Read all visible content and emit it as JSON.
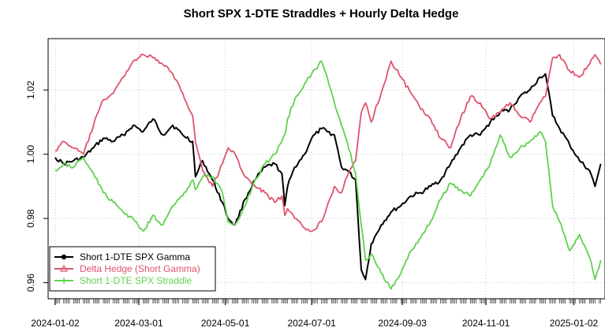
{
  "chart_data": {
    "type": "line",
    "title": "Short SPX 1-DTE Straddles + Hourly Delta Hedge",
    "xlabel": "",
    "ylabel": "",
    "x_range": [
      "2023-12-28",
      "2025-01-24"
    ],
    "ylim": [
      0.955,
      1.036
    ],
    "x_ticks": [
      "2024-01-02",
      "2024-03-01",
      "2024-05-01",
      "2024-07-01",
      "2024-09-03",
      "2024-11-01",
      "2025-01-02"
    ],
    "y_ticks": [
      0.96,
      0.98,
      1.0,
      1.02
    ],
    "y_tick_labels": [
      "0.96",
      "0.98",
      "1.00",
      "1.02"
    ],
    "grid": true,
    "legend_position": "bottom-left",
    "series": [
      {
        "name": "Short 1-DTE SPX Gamma",
        "color": "#000000",
        "marker": "circle",
        "points": [
          [
            "2024-01-02",
            0.999
          ],
          [
            "2024-01-08",
            0.997
          ],
          [
            "2024-01-15",
            0.998
          ],
          [
            "2024-01-22",
            0.999
          ],
          [
            "2024-01-29",
            1.002
          ],
          [
            "2024-02-05",
            1.005
          ],
          [
            "2024-02-12",
            1.004
          ],
          [
            "2024-02-19",
            1.006
          ],
          [
            "2024-02-26",
            1.009
          ],
          [
            "2024-03-04",
            1.007
          ],
          [
            "2024-03-11",
            1.011
          ],
          [
            "2024-03-18",
            1.006
          ],
          [
            "2024-03-25",
            1.009
          ],
          [
            "2024-04-01",
            1.006
          ],
          [
            "2024-04-08",
            1.004
          ],
          [
            "2024-04-10",
            0.993
          ],
          [
            "2024-04-15",
            0.998
          ],
          [
            "2024-04-22",
            0.992
          ],
          [
            "2024-04-29",
            0.985
          ],
          [
            "2024-05-03",
            0.98
          ],
          [
            "2024-05-08",
            0.978
          ],
          [
            "2024-05-15",
            0.986
          ],
          [
            "2024-05-22",
            0.992
          ],
          [
            "2024-05-29",
            0.996
          ],
          [
            "2024-06-05",
            0.997
          ],
          [
            "2024-06-10",
            0.994
          ],
          [
            "2024-06-12",
            0.984
          ],
          [
            "2024-06-14",
            0.99
          ],
          [
            "2024-06-19",
            0.996
          ],
          [
            "2024-06-26",
            1.0
          ],
          [
            "2024-07-01",
            1.005
          ],
          [
            "2024-07-08",
            1.008
          ],
          [
            "2024-07-12",
            1.007
          ],
          [
            "2024-07-17",
            1.006
          ],
          [
            "2024-07-22",
            0.996
          ],
          [
            "2024-07-26",
            0.995
          ],
          [
            "2024-08-01",
            0.992
          ],
          [
            "2024-08-05",
            0.964
          ],
          [
            "2024-08-08",
            0.961
          ],
          [
            "2024-08-12",
            0.972
          ],
          [
            "2024-08-19",
            0.978
          ],
          [
            "2024-08-26",
            0.982
          ],
          [
            "2024-09-02",
            0.984
          ],
          [
            "2024-09-09",
            0.987
          ],
          [
            "2024-09-16",
            0.988
          ],
          [
            "2024-09-23",
            0.99
          ],
          [
            "2024-09-30",
            0.992
          ],
          [
            "2024-10-07",
            0.997
          ],
          [
            "2024-10-14",
            1.002
          ],
          [
            "2024-10-21",
            1.006
          ],
          [
            "2024-10-28",
            1.006
          ],
          [
            "2024-11-04",
            1.01
          ],
          [
            "2024-11-11",
            1.013
          ],
          [
            "2024-11-18",
            1.014
          ],
          [
            "2024-11-25",
            1.018
          ],
          [
            "2024-12-02",
            1.02
          ],
          [
            "2024-12-09",
            1.024
          ],
          [
            "2024-12-13",
            1.025
          ],
          [
            "2024-12-18",
            1.012
          ],
          [
            "2024-12-23",
            1.008
          ],
          [
            "2024-12-30",
            1.003
          ],
          [
            "2025-01-06",
            0.998
          ],
          [
            "2025-01-13",
            0.995
          ],
          [
            "2025-01-17",
            0.99
          ],
          [
            "2025-01-21",
            0.997
          ]
        ]
      },
      {
        "name": "Delta Hedge (Short Gamma)",
        "color": "#df536b",
        "marker": "triangle",
        "points": [
          [
            "2024-01-02",
            1.001
          ],
          [
            "2024-01-08",
            1.004
          ],
          [
            "2024-01-15",
            1.002
          ],
          [
            "2024-01-22",
            1.0
          ],
          [
            "2024-01-29",
            1.009
          ],
          [
            "2024-02-05",
            1.017
          ],
          [
            "2024-02-12",
            1.019
          ],
          [
            "2024-02-19",
            1.024
          ],
          [
            "2024-02-26",
            1.029
          ],
          [
            "2024-03-04",
            1.031
          ],
          [
            "2024-03-11",
            1.03
          ],
          [
            "2024-03-18",
            1.028
          ],
          [
            "2024-03-25",
            1.025
          ],
          [
            "2024-04-01",
            1.019
          ],
          [
            "2024-04-08",
            1.012
          ],
          [
            "2024-04-10",
            1.004
          ],
          [
            "2024-04-15",
            0.995
          ],
          [
            "2024-04-22",
            0.99
          ],
          [
            "2024-04-29",
            0.997
          ],
          [
            "2024-05-03",
            1.002
          ],
          [
            "2024-05-08",
            1.0
          ],
          [
            "2024-05-15",
            0.993
          ],
          [
            "2024-05-22",
            0.99
          ],
          [
            "2024-05-29",
            0.988
          ],
          [
            "2024-06-05",
            0.985
          ],
          [
            "2024-06-10",
            0.987
          ],
          [
            "2024-06-12",
            0.981
          ],
          [
            "2024-06-14",
            0.983
          ],
          [
            "2024-06-19",
            0.98
          ],
          [
            "2024-06-26",
            0.977
          ],
          [
            "2024-07-01",
            0.976
          ],
          [
            "2024-07-08",
            0.979
          ],
          [
            "2024-07-12",
            0.984
          ],
          [
            "2024-07-17",
            0.99
          ],
          [
            "2024-07-22",
            0.988
          ],
          [
            "2024-07-26",
            0.993
          ],
          [
            "2024-08-01",
            0.998
          ],
          [
            "2024-08-05",
            1.013
          ],
          [
            "2024-08-08",
            1.016
          ],
          [
            "2024-08-12",
            1.01
          ],
          [
            "2024-08-19",
            1.019
          ],
          [
            "2024-08-26",
            1.029
          ],
          [
            "2024-09-02",
            1.024
          ],
          [
            "2024-09-09",
            1.019
          ],
          [
            "2024-09-16",
            1.014
          ],
          [
            "2024-09-23",
            1.011
          ],
          [
            "2024-09-30",
            1.005
          ],
          [
            "2024-10-07",
            1.002
          ],
          [
            "2024-10-14",
            1.011
          ],
          [
            "2024-10-21",
            1.018
          ],
          [
            "2024-10-28",
            1.016
          ],
          [
            "2024-11-04",
            1.011
          ],
          [
            "2024-11-11",
            1.013
          ],
          [
            "2024-11-18",
            1.016
          ],
          [
            "2024-11-25",
            1.012
          ],
          [
            "2024-12-02",
            1.01
          ],
          [
            "2024-12-09",
            1.016
          ],
          [
            "2024-12-13",
            1.018
          ],
          [
            "2024-12-18",
            1.03
          ],
          [
            "2024-12-23",
            1.031
          ],
          [
            "2024-12-30",
            1.026
          ],
          [
            "2025-01-06",
            1.024
          ],
          [
            "2025-01-13",
            1.028
          ],
          [
            "2025-01-17",
            1.031
          ],
          [
            "2025-01-21",
            1.028
          ]
        ]
      },
      {
        "name": "Short 1-DTE SPX Straddle",
        "color": "#61d04f",
        "marker": "plus",
        "points": [
          [
            "2024-01-02",
            0.995
          ],
          [
            "2024-01-08",
            0.997
          ],
          [
            "2024-01-15",
            0.996
          ],
          [
            "2024-01-22",
            0.999
          ],
          [
            "2024-01-29",
            0.994
          ],
          [
            "2024-02-05",
            0.988
          ],
          [
            "2024-02-12",
            0.985
          ],
          [
            "2024-02-19",
            0.982
          ],
          [
            "2024-02-26",
            0.98
          ],
          [
            "2024-03-04",
            0.976
          ],
          [
            "2024-03-11",
            0.981
          ],
          [
            "2024-03-18",
            0.978
          ],
          [
            "2024-03-25",
            0.984
          ],
          [
            "2024-04-01",
            0.987
          ],
          [
            "2024-04-08",
            0.992
          ],
          [
            "2024-04-10",
            0.989
          ],
          [
            "2024-04-15",
            0.993
          ],
          [
            "2024-04-22",
            0.993
          ],
          [
            "2024-04-29",
            0.988
          ],
          [
            "2024-05-03",
            0.979
          ],
          [
            "2024-05-08",
            0.978
          ],
          [
            "2024-05-15",
            0.984
          ],
          [
            "2024-05-22",
            0.992
          ],
          [
            "2024-05-29",
            0.997
          ],
          [
            "2024-06-05",
            1.0
          ],
          [
            "2024-06-10",
            1.004
          ],
          [
            "2024-06-12",
            1.006
          ],
          [
            "2024-06-14",
            1.011
          ],
          [
            "2024-06-19",
            1.017
          ],
          [
            "2024-06-26",
            1.022
          ],
          [
            "2024-07-01",
            1.025
          ],
          [
            "2024-07-08",
            1.029
          ],
          [
            "2024-07-12",
            1.024
          ],
          [
            "2024-07-17",
            1.016
          ],
          [
            "2024-07-22",
            1.009
          ],
          [
            "2024-07-26",
            1.004
          ],
          [
            "2024-08-01",
            0.994
          ],
          [
            "2024-08-05",
            0.978
          ],
          [
            "2024-08-08",
            0.967
          ],
          [
            "2024-08-12",
            0.969
          ],
          [
            "2024-08-19",
            0.963
          ],
          [
            "2024-08-26",
            0.958
          ],
          [
            "2024-09-02",
            0.963
          ],
          [
            "2024-09-09",
            0.97
          ],
          [
            "2024-09-16",
            0.974
          ],
          [
            "2024-09-23",
            0.979
          ],
          [
            "2024-09-30",
            0.986
          ],
          [
            "2024-10-07",
            0.991
          ],
          [
            "2024-10-14",
            0.989
          ],
          [
            "2024-10-21",
            0.987
          ],
          [
            "2024-10-28",
            0.992
          ],
          [
            "2024-11-04",
            0.997
          ],
          [
            "2024-11-11",
            1.006
          ],
          [
            "2024-11-18",
            0.999
          ],
          [
            "2024-11-25",
            1.002
          ],
          [
            "2024-12-02",
            1.004
          ],
          [
            "2024-12-09",
            1.007
          ],
          [
            "2024-12-13",
            1.004
          ],
          [
            "2024-12-18",
            0.984
          ],
          [
            "2024-12-23",
            0.979
          ],
          [
            "2024-12-30",
            0.97
          ],
          [
            "2025-01-06",
            0.975
          ],
          [
            "2025-01-13",
            0.968
          ],
          [
            "2025-01-17",
            0.961
          ],
          [
            "2025-01-21",
            0.967
          ]
        ]
      }
    ]
  }
}
